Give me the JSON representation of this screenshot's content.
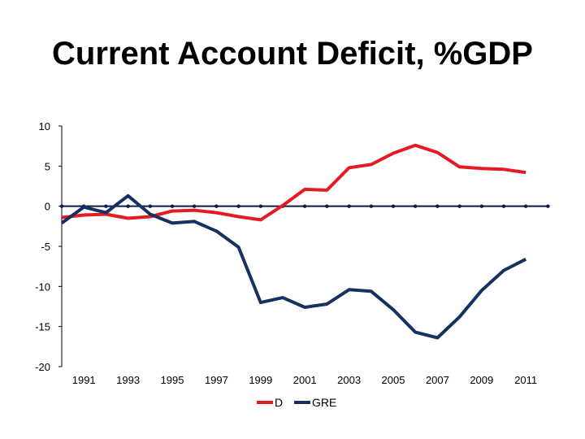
{
  "chart_data": {
    "type": "line",
    "title": "Current Account Deficit, %GDP",
    "xlabel": "",
    "ylabel": "",
    "x": [
      1990,
      1991,
      1992,
      1993,
      1994,
      1995,
      1996,
      1997,
      1998,
      1999,
      2000,
      2001,
      2002,
      2003,
      2004,
      2005,
      2006,
      2007,
      2008,
      2009,
      2010,
      2011,
      2012
    ],
    "x_tick_labels": [
      "1991",
      "1993",
      "1995",
      "1997",
      "1999",
      "2001",
      "2003",
      "2005",
      "2007",
      "2009",
      "2011"
    ],
    "y_tick_labels": [
      "10",
      "5",
      "0",
      "-5",
      "-10",
      "-15",
      "-20"
    ],
    "ylim": [
      -20,
      10
    ],
    "grid": false,
    "legend_position": "bottom",
    "series": [
      {
        "name": "D",
        "color": "#e31b23",
        "values": [
          -1.4,
          -1.1,
          -1.0,
          -1.5,
          -1.3,
          -0.6,
          -0.5,
          -0.8,
          -1.3,
          -1.7,
          0.1,
          2.1,
          2.0,
          4.8,
          5.2,
          6.6,
          7.6,
          6.7,
          4.9,
          4.7,
          4.6,
          4.2,
          null
        ]
      },
      {
        "name": "GRE",
        "color": "#16305f",
        "values": [
          -2.1,
          -0.1,
          -0.8,
          1.3,
          -1.0,
          -2.1,
          -1.9,
          -3.1,
          -5.1,
          -12.0,
          -11.4,
          -12.6,
          -12.2,
          -10.4,
          -10.6,
          -12.9,
          -15.7,
          -16.4,
          -13.8,
          -10.5,
          -8.0,
          -6.6,
          null
        ]
      }
    ]
  }
}
